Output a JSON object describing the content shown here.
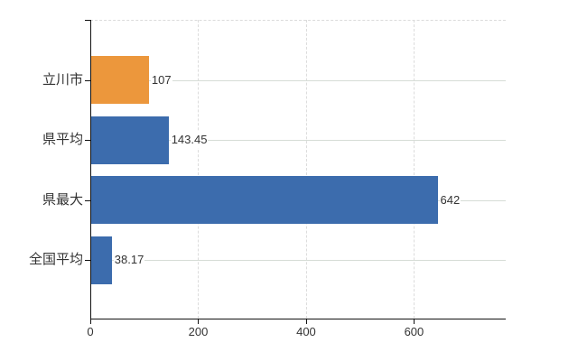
{
  "chart_data": {
    "type": "bar",
    "orientation": "horizontal",
    "title": "",
    "xlabel": "",
    "ylabel": "",
    "categories": [
      "立川市",
      "県平均",
      "県最大",
      "全国平均"
    ],
    "values": [
      107,
      143.45,
      642,
      38.17
    ],
    "value_labels": [
      "107",
      "143.45",
      "642",
      "38.17"
    ],
    "bar_colors": [
      "#EC973C",
      "#3C6CAD",
      "#3C6CAD",
      "#3C6CAD"
    ],
    "xlim": [
      0,
      770
    ],
    "x_ticks": [
      0,
      200,
      400,
      600
    ],
    "x_tick_labels": [
      "0",
      "200",
      "400",
      "600"
    ],
    "grid": "on",
    "legend": "none"
  },
  "style": {
    "background": "#ffffff",
    "axis_color": "#111111",
    "vertical_grid_color": "#dcdcdc",
    "horizontal_grid_color": "#d6dcd6",
    "text_color": "#333333"
  }
}
